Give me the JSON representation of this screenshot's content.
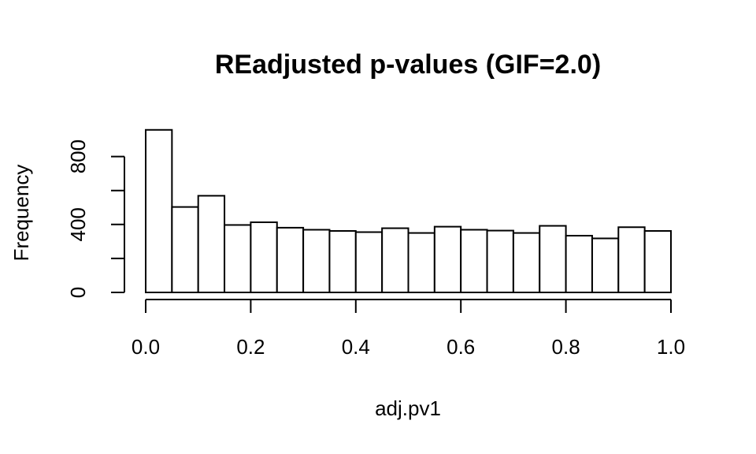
{
  "chart_data": {
    "type": "bar",
    "title": "REadjusted p-values (GIF=2.0)",
    "xlabel": "adj.pv1",
    "ylabel": "Frequency",
    "xlim": [
      0,
      1
    ],
    "ylim": [
      0,
      960
    ],
    "bin_edges": [
      0.0,
      0.05,
      0.1,
      0.15,
      0.2,
      0.25,
      0.3,
      0.35,
      0.4,
      0.45,
      0.5,
      0.55,
      0.6,
      0.65,
      0.7,
      0.75,
      0.8,
      0.85,
      0.9,
      0.95,
      1.0
    ],
    "values": [
      957,
      503,
      569,
      397,
      413,
      381,
      369,
      362,
      355,
      378,
      350,
      387,
      369,
      364,
      350,
      392,
      334,
      318,
      384,
      362
    ],
    "x_ticks": [
      0.0,
      0.2,
      0.4,
      0.6,
      0.8,
      1.0
    ],
    "x_tick_labels": [
      "0.0",
      "0.2",
      "0.4",
      "0.6",
      "0.8",
      "1.0"
    ],
    "y_ticks": [
      0,
      200,
      400,
      600,
      800
    ],
    "y_tick_labels": [
      "0",
      "",
      "400",
      "",
      "800"
    ],
    "grid": false,
    "legend": "none"
  }
}
